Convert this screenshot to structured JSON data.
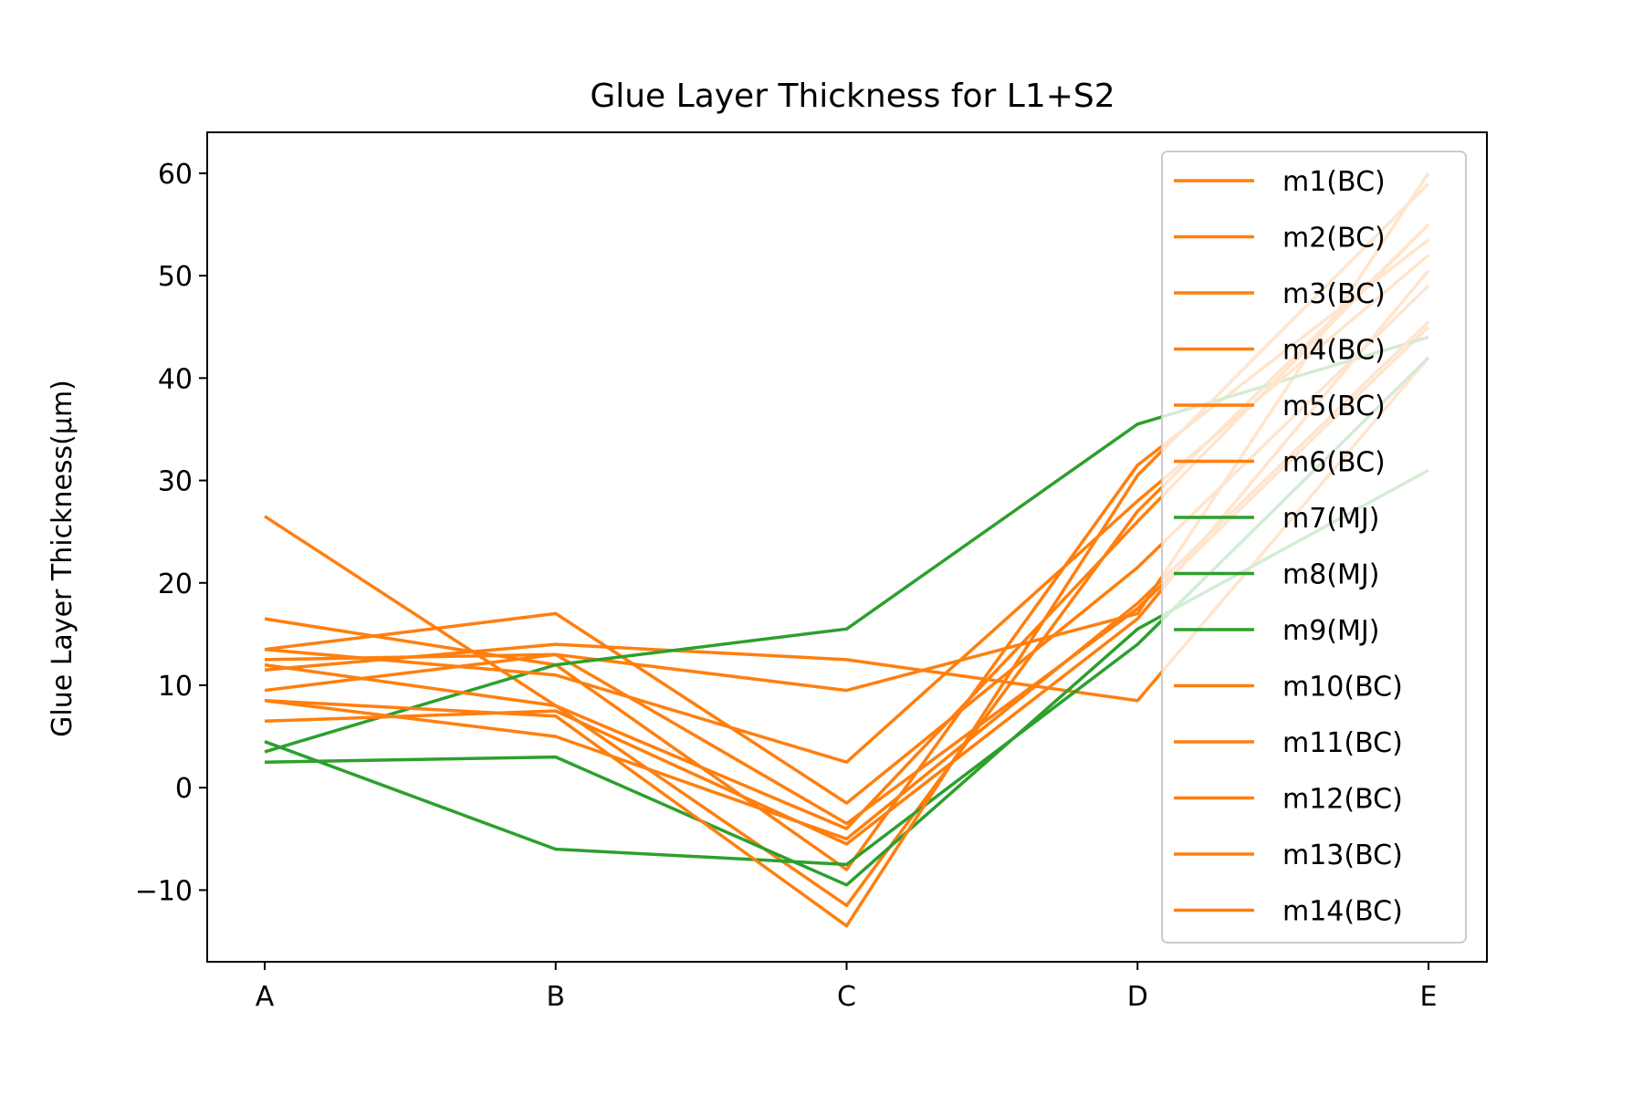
{
  "chart_data": {
    "type": "line",
    "title": "Glue Layer Thickness for L1+S2",
    "xlabel": "",
    "ylabel": "Glue Layer Thickness(μm)",
    "categories": [
      "A",
      "B",
      "C",
      "D",
      "E"
    ],
    "ylim": [
      -17,
      64
    ],
    "yticks": [
      -10,
      0,
      10,
      20,
      30,
      40,
      50,
      60
    ],
    "ytick_labels": [
      "−10",
      "0",
      "10",
      "20",
      "30",
      "40",
      "50",
      "60"
    ],
    "grid": false,
    "legend_position": "top-right",
    "colors": {
      "BC": "#ff7f0e",
      "MJ": "#2ca02c",
      "frame": "#000000"
    },
    "series": [
      {
        "name": "m1(BC)",
        "group": "BC",
        "values": [
          26.5,
          8.0,
          -11.5,
          27.0,
          55.0
        ]
      },
      {
        "name": "m2(BC)",
        "group": "BC",
        "values": [
          16.5,
          12.0,
          -8.0,
          31.5,
          53.5
        ]
      },
      {
        "name": "m3(BC)",
        "group": "BC",
        "values": [
          13.5,
          17.0,
          -1.5,
          21.5,
          49.0
        ]
      },
      {
        "name": "m4(BC)",
        "group": "BC",
        "values": [
          12.5,
          13.0,
          -3.5,
          17.5,
          45.0
        ]
      },
      {
        "name": "m5(BC)",
        "group": "BC",
        "values": [
          11.5,
          14.0,
          12.5,
          8.5,
          42.0
        ]
      },
      {
        "name": "m6(BC)",
        "group": "BC",
        "values": [
          9.5,
          13.0,
          9.5,
          17.0,
          60.0
        ]
      },
      {
        "name": "m7(MJ)",
        "group": "MJ",
        "values": [
          3.5,
          12.0,
          15.5,
          35.5,
          44.0
        ]
      },
      {
        "name": "m8(MJ)",
        "group": "MJ",
        "values": [
          4.5,
          -6.0,
          -7.5,
          14.0,
          42.0
        ]
      },
      {
        "name": "m9(MJ)",
        "group": "MJ",
        "values": [
          2.5,
          3.0,
          -9.5,
          15.5,
          31.0
        ]
      },
      {
        "name": "m10(BC)",
        "group": "BC",
        "values": [
          13.5,
          11.0,
          2.5,
          28.0,
          52.0
        ]
      },
      {
        "name": "m11(BC)",
        "group": "BC",
        "values": [
          8.5,
          7.0,
          -13.5,
          30.5,
          59.0
        ]
      },
      {
        "name": "m12(BC)",
        "group": "BC",
        "values": [
          8.5,
          5.0,
          -5.0,
          18.0,
          45.5
        ]
      },
      {
        "name": "m13(BC)",
        "group": "BC",
        "values": [
          6.5,
          7.5,
          -5.5,
          16.5,
          50.5
        ]
      },
      {
        "name": "m14(BC)",
        "group": "BC",
        "values": [
          12.0,
          8.0,
          -4.0,
          26.0,
          55.0
        ]
      }
    ]
  }
}
